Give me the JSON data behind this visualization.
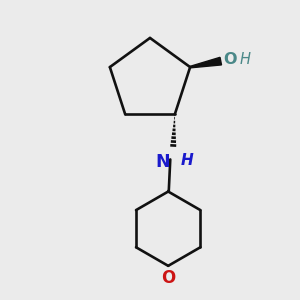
{
  "bg": "#ebebeb",
  "bond_color": "#111111",
  "N_color": "#1a1acc",
  "O_color": "#cc1414",
  "OH_color": "#4a8888",
  "lw": 1.9,
  "xlim": [
    0,
    10
  ],
  "ylim": [
    0,
    10
  ]
}
